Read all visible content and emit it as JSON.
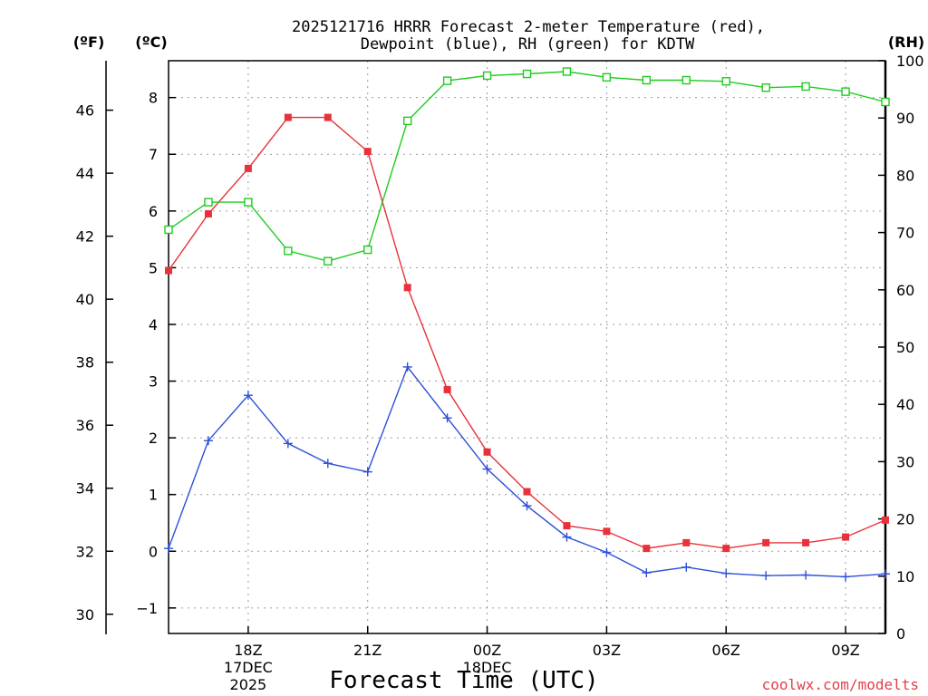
{
  "chart_data": {
    "type": "line",
    "title_line1": "2025121716 HRRR Forecast 2-meter Temperature (red),",
    "title_line2": "Dewpoint (blue), RH (green) for KDTW",
    "xlabel": "Forecast Time (UTC)",
    "credit": "coolwx.com/modelts",
    "units": {
      "fahrenheit": "(ºF)",
      "celsius": "(ºC)",
      "rh": "(RH)"
    },
    "x_hours": [
      0,
      1,
      2,
      3,
      4,
      5,
      6,
      7,
      8,
      9,
      10,
      11,
      12,
      13,
      14,
      15,
      16,
      17,
      18
    ],
    "x_ticks": [
      {
        "hour": 2,
        "lines": [
          "18Z",
          "17DEC",
          "2025"
        ]
      },
      {
        "hour": 5,
        "lines": [
          "21Z"
        ]
      },
      {
        "hour": 8,
        "lines": [
          "00Z",
          "18DEC"
        ]
      },
      {
        "hour": 11,
        "lines": [
          "03Z"
        ]
      },
      {
        "hour": 14,
        "lines": [
          "06Z"
        ]
      },
      {
        "hour": 17,
        "lines": [
          "09Z"
        ]
      }
    ],
    "y_celsius": {
      "range": [
        -1.45,
        8.65
      ],
      "ticks": [
        -1,
        0,
        1,
        2,
        3,
        4,
        5,
        6,
        7,
        8
      ]
    },
    "y_fahrenheit": {
      "ticks": [
        30,
        32,
        34,
        36,
        38,
        40,
        42,
        44,
        46
      ]
    },
    "y_rh": {
      "range": [
        0,
        100
      ],
      "ticks": [
        0,
        10,
        20,
        30,
        40,
        50,
        60,
        70,
        80,
        90,
        100
      ]
    },
    "series": [
      {
        "name": "Temperature",
        "axis": "celsius",
        "color": "#e8313a",
        "marker": "filled-square",
        "values": [
          4.95,
          5.95,
          6.75,
          7.65,
          7.65,
          7.05,
          4.65,
          2.85,
          1.75,
          1.05,
          0.45,
          0.35,
          0.05,
          0.15,
          0.05,
          0.15,
          0.15,
          0.25,
          0.55
        ]
      },
      {
        "name": "Dewpoint",
        "axis": "celsius",
        "color": "#2d4fd9",
        "marker": "plus",
        "values": [
          0.05,
          1.95,
          2.75,
          1.9,
          1.55,
          1.4,
          3.25,
          2.35,
          1.45,
          0.8,
          0.25,
          -0.02,
          -0.38,
          -0.28,
          -0.39,
          -0.43,
          -0.42,
          -0.45,
          -0.4
        ]
      },
      {
        "name": "RH",
        "axis": "rh",
        "color": "#1fcc1f",
        "marker": "open-square",
        "values": [
          70.5,
          75.3,
          75.3,
          66.8,
          65.0,
          67.0,
          89.5,
          96.5,
          97.4,
          97.7,
          98.1,
          97.1,
          96.6,
          96.6,
          96.4,
          95.3,
          95.5,
          94.6,
          92.8
        ]
      }
    ]
  }
}
